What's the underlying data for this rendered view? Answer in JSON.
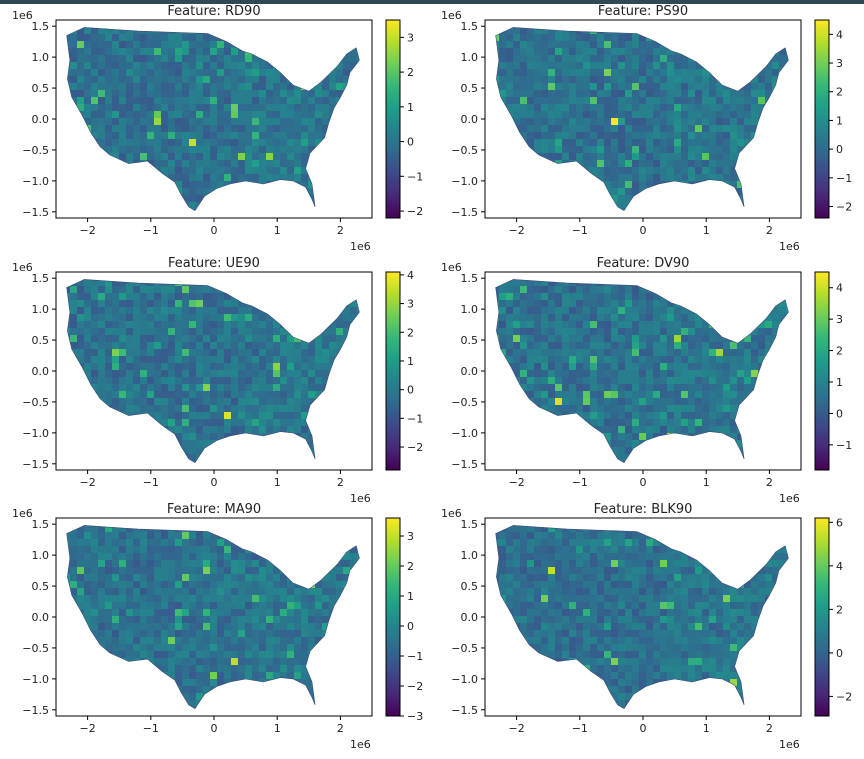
{
  "figure": {
    "grid_cols": 2,
    "grid_rows": 3
  },
  "common_axes": {
    "xlim": [
      -2.5,
      2.5
    ],
    "ylim": [
      -1.6,
      1.6
    ],
    "x_ticks": [
      -2,
      -1,
      0,
      1,
      2
    ],
    "x_tick_labels": [
      "−2",
      "−1",
      "0",
      "1",
      "2"
    ],
    "y_ticks": [
      -1.5,
      -1.0,
      -0.5,
      0.0,
      0.5,
      1.0,
      1.5
    ],
    "y_tick_labels": [
      "−1.5",
      "−1.0",
      "−0.5",
      "0.0",
      "0.5",
      "1.0",
      "1.5"
    ],
    "x_offset_text": "1e6",
    "y_offset_text": "1e6"
  },
  "chart_data": [
    {
      "type": "heatmap",
      "subtype": "choropleth",
      "title": "Feature: RD90",
      "colormap": "viridis",
      "colorbar_range": [
        -2.2,
        3.5
      ],
      "colorbar_ticks": [
        3,
        2,
        1,
        0,
        -1,
        -2
      ],
      "colorbar_tick_labels": [
        "3",
        "2",
        "1",
        "0",
        "−1",
        "−2"
      ]
    },
    {
      "type": "heatmap",
      "subtype": "choropleth",
      "title": "Feature: PS90",
      "colormap": "viridis",
      "colorbar_range": [
        -2.4,
        4.5
      ],
      "colorbar_ticks": [
        4,
        3,
        2,
        1,
        0,
        -1,
        -2
      ],
      "colorbar_tick_labels": [
        "4",
        "3",
        "2",
        "1",
        "0",
        "−1",
        "−2"
      ]
    },
    {
      "type": "heatmap",
      "subtype": "choropleth",
      "title": "Feature: UE90",
      "colormap": "viridis",
      "colorbar_range": [
        -2.8,
        4.1
      ],
      "colorbar_ticks": [
        4,
        3,
        2,
        1,
        0,
        -1,
        -2
      ],
      "colorbar_tick_labels": [
        "4",
        "3",
        "2",
        "1",
        "0",
        "−1",
        "−2"
      ]
    },
    {
      "type": "heatmap",
      "subtype": "choropleth",
      "title": "Feature: DV90",
      "colormap": "viridis",
      "colorbar_range": [
        -1.8,
        4.5
      ],
      "colorbar_ticks": [
        4,
        3,
        2,
        1,
        0,
        -1
      ],
      "colorbar_tick_labels": [
        "4",
        "3",
        "2",
        "1",
        "0",
        "−1"
      ]
    },
    {
      "type": "heatmap",
      "subtype": "choropleth",
      "title": "Feature: MA90",
      "colormap": "viridis",
      "colorbar_range": [
        -3.0,
        3.6
      ],
      "colorbar_ticks": [
        3,
        2,
        1,
        0,
        -1,
        -2,
        -3
      ],
      "colorbar_tick_labels": [
        "3",
        "2",
        "1",
        "0",
        "−1",
        "−2",
        "−3"
      ]
    },
    {
      "type": "heatmap",
      "subtype": "choropleth",
      "title": "Feature: BLK90",
      "colormap": "viridis",
      "colorbar_range": [
        -2.9,
        6.2
      ],
      "colorbar_ticks": [
        6,
        4,
        2,
        0,
        -2
      ],
      "colorbar_tick_labels": [
        "6",
        "4",
        "2",
        "0",
        "−2"
      ]
    }
  ]
}
